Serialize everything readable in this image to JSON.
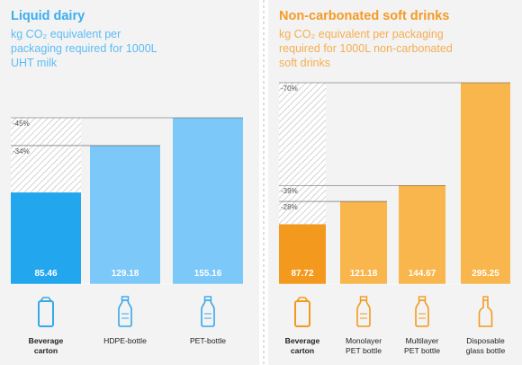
{
  "chart_data": [
    {
      "type": "bar",
      "title": "Liquid dairy",
      "subtitle_lines": [
        "kg CO₂ equivalent per",
        "packaging required for 1000L",
        "UHT milk"
      ],
      "ylabel": "kg CO₂ equivalent per packaging required for 1000L UHT milk",
      "categories": [
        "Beverage carton",
        "HDPE-bottle",
        "PET-bottle"
      ],
      "category_lines": [
        [
          "Beverage",
          "carton"
        ],
        [
          "HDPE-bottle"
        ],
        [
          "PET-bottle"
        ]
      ],
      "values": [
        85.46,
        129.18,
        155.16
      ],
      "value_labels": [
        "85.46",
        "129.18",
        "155.16"
      ],
      "reduction_annotations": [
        {
          "label": "-45%",
          "versus": "PET-bottle"
        },
        {
          "label": "-34%",
          "versus": "HDPE-bottle"
        }
      ],
      "colors": {
        "highlight": "#22a6ee",
        "bar": "#7cc8f8",
        "title": "#3aaef0",
        "subtitle": "#5cbcf5",
        "icon": "#36a8ec"
      },
      "ylim": [
        0,
        170
      ]
    },
    {
      "type": "bar",
      "title": "Non-carbonated soft drinks",
      "subtitle_lines": [
        "kg CO₂ equivalent per packaging",
        "required for 1000L non-carbonated",
        "soft drinks"
      ],
      "ylabel": "kg CO₂ equivalent per packaging required for 1000L non-carbonated soft drinks",
      "categories": [
        "Beverage carton",
        "Monolayer PET bottle",
        "Multilayer PET bottle",
        "Disposable glass bottle"
      ],
      "category_lines": [
        [
          "Beverage",
          "carton"
        ],
        [
          "Monolayer",
          "PET bottle"
        ],
        [
          "Multilayer",
          "PET bottle"
        ],
        [
          "Disposable",
          "glass bottle"
        ]
      ],
      "values": [
        87.72,
        121.18,
        144.67,
        295.25
      ],
      "value_labels": [
        "87.72",
        "121.18",
        "144.67",
        "295.25"
      ],
      "reduction_annotations": [
        {
          "label": "-70%",
          "versus": "Disposable glass bottle"
        },
        {
          "label": "-39%",
          "versus": "Multilayer PET bottle"
        },
        {
          "label": "-28%",
          "versus": "Monolayer PET bottle"
        }
      ],
      "colors": {
        "highlight": "#f39a1e",
        "bar": "#f8b64c",
        "title": "#f59a25",
        "subtitle": "#f6ad52",
        "icon": "#f39a1e"
      },
      "ylim": [
        0,
        305
      ]
    }
  ]
}
